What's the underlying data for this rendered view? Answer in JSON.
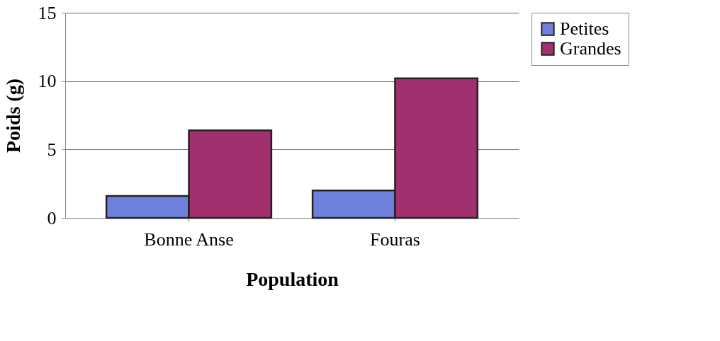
{
  "chart_data": {
    "type": "bar",
    "xlabel": "Population",
    "ylabel": "Poids (g)",
    "categories": [
      "Bonne Anse",
      "Fouras"
    ],
    "series": [
      {
        "name": "Petites",
        "color": "#6f80dc",
        "values": [
          1.6,
          2.0
        ]
      },
      {
        "name": "Grandes",
        "color": "#a2306f",
        "values": [
          6.4,
          10.2
        ]
      }
    ],
    "ylim": [
      0,
      15
    ],
    "yticks": [
      0,
      5,
      10,
      15
    ],
    "grid": "y",
    "legend": "right"
  }
}
